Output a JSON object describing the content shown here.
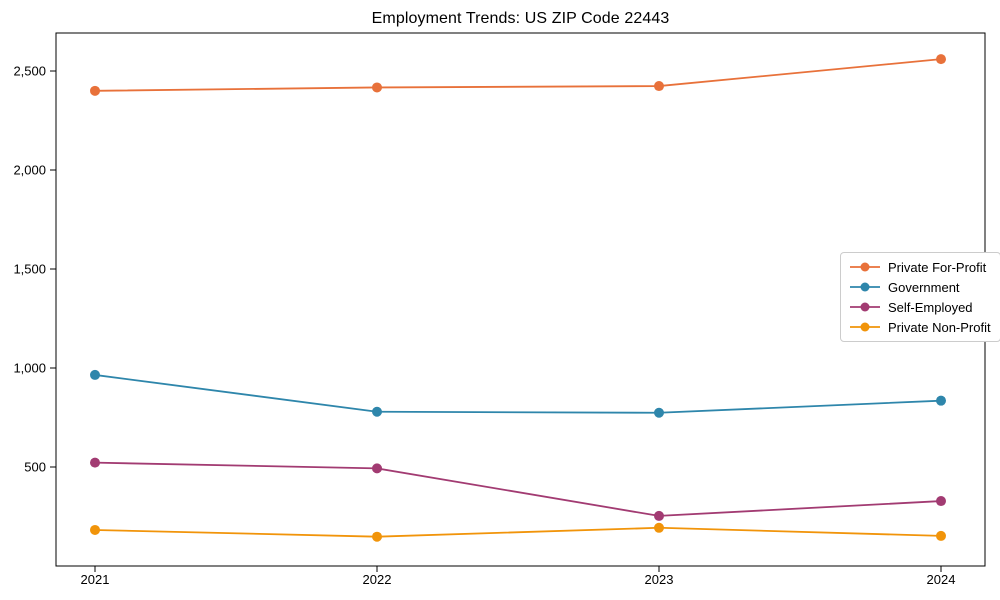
{
  "title": "Employment Trends: US ZIP Code 22443",
  "chart_data": {
    "type": "line",
    "title": "Employment Trends: US ZIP Code 22443",
    "xlabel": "",
    "ylabel": "",
    "categories": [
      "2021",
      "2022",
      "2023",
      "2024"
    ],
    "series": [
      {
        "name": "Private For-Profit",
        "color": "#E8713A",
        "values": [
          2400,
          2417,
          2424,
          2560
        ]
      },
      {
        "name": "Government",
        "color": "#2E86AB",
        "values": [
          965,
          779,
          774,
          835
        ]
      },
      {
        "name": "Self-Employed",
        "color": "#A23B72",
        "values": [
          522,
          493,
          253,
          328
        ]
      },
      {
        "name": "Private Non-Profit",
        "color": "#F1940A",
        "values": [
          182,
          148,
          193,
          152
        ]
      }
    ],
    "yticks": [
      500,
      1000,
      1500,
      2000,
      2500
    ],
    "ytick_labels": [
      "500",
      "1,000",
      "1,500",
      "2,000",
      "2,500"
    ],
    "ylim": [
      0,
      2692
    ],
    "grid": false,
    "legend_position": "right-center",
    "marker": "circle",
    "line_width": 1.8,
    "marker_radius": 5
  }
}
